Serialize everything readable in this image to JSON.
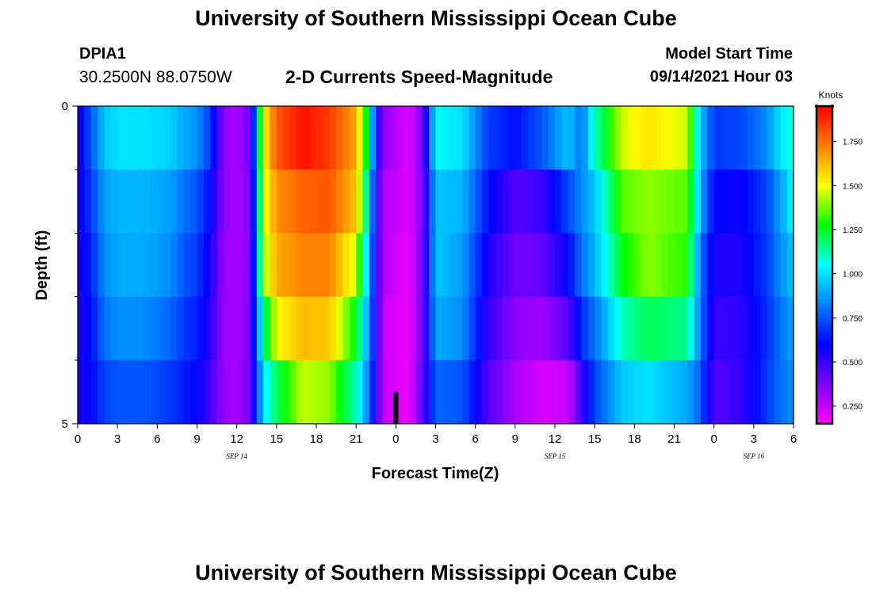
{
  "header": {
    "title": "University of Southern Mississippi Ocean Cube",
    "station_id": "DPIA1",
    "station_coords": "30.2500N  88.0750W",
    "chart_title": "2-D Currents Speed-Magnitude",
    "model_start_label": "Model Start Time",
    "model_start_value": "09/14/2021 Hour 03"
  },
  "footer": {
    "title": "University of Southern Mississippi Ocean Cube"
  },
  "colors": {
    "now_marker": "#000000",
    "colormap": [
      "#ff00ff",
      "#7f00ff",
      "#0000ff",
      "#0080ff",
      "#00ffff",
      "#00ff00",
      "#ffff00",
      "#ff8000",
      "#ff0000"
    ]
  },
  "chart_data": {
    "type": "heatmap",
    "title": "2-D Currents Speed-Magnitude",
    "xlabel": "Forecast Time(Z)",
    "ylabel": "Depth (ft)",
    "x_hours": [
      0,
      3,
      6,
      9,
      12,
      15,
      18,
      21,
      24,
      27,
      30,
      33,
      36,
      39,
      42,
      45,
      48,
      51,
      54
    ],
    "x_tick_labels": [
      "0",
      "3",
      "6",
      "9",
      "12",
      "15",
      "18",
      "21",
      "0",
      "3",
      "6",
      "9",
      "12",
      "15",
      "18",
      "21",
      "0",
      "3",
      "6"
    ],
    "date_labels": [
      {
        "text": "SEP 14",
        "hour": 12
      },
      {
        "text": "SEP 15",
        "hour": 36
      },
      {
        "text": "SEP 16",
        "hour": 51
      }
    ],
    "ylim": [
      0,
      5
    ],
    "y_tick_labels": [
      "0",
      "5"
    ],
    "y_minor_ticks": [
      1,
      2,
      3,
      4
    ],
    "depth_rows": [
      "0-1",
      "1-2",
      "2-3",
      "3-4",
      "4-5"
    ],
    "colorbar": {
      "unit": "Knots",
      "range": [
        0.15,
        1.95
      ],
      "tick_labels": [
        "0.250",
        "0.500",
        "0.750",
        "1.000",
        "1.250",
        "1.500",
        "1.750"
      ],
      "tick_values": [
        0.25,
        0.5,
        0.75,
        1.0,
        1.25,
        1.5,
        1.75
      ]
    },
    "now_marker_hour": 24,
    "series": [
      {
        "hour": 0,
        "values": [
          0.55,
          0.55,
          0.55,
          0.55,
          0.55
        ]
      },
      {
        "hour": 1,
        "values": [
          0.75,
          0.7,
          0.65,
          0.62,
          0.6
        ]
      },
      {
        "hour": 2,
        "values": [
          0.95,
          0.88,
          0.85,
          0.8,
          0.72
        ]
      },
      {
        "hour": 3,
        "values": [
          1.0,
          0.92,
          0.9,
          0.85,
          0.75
        ]
      },
      {
        "hour": 5,
        "values": [
          1.0,
          0.92,
          0.9,
          0.85,
          0.75
        ]
      },
      {
        "hour": 7,
        "values": [
          0.97,
          0.88,
          0.85,
          0.78,
          0.7
        ]
      },
      {
        "hour": 8,
        "values": [
          0.9,
          0.8,
          0.75,
          0.7,
          0.65
        ]
      },
      {
        "hour": 9,
        "values": [
          0.85,
          0.75,
          0.7,
          0.65,
          0.6
        ]
      },
      {
        "hour": 10,
        "values": [
          0.7,
          0.6,
          0.55,
          0.52,
          0.48
        ]
      },
      {
        "hour": 11,
        "values": [
          0.35,
          0.35,
          0.33,
          0.33,
          0.33
        ]
      },
      {
        "hour": 12,
        "values": [
          0.3,
          0.3,
          0.3,
          0.3,
          0.3
        ]
      },
      {
        "hour": 13,
        "values": [
          0.4,
          0.38,
          0.38,
          0.38,
          0.4
        ]
      },
      {
        "hour": 14,
        "values": [
          1.5,
          1.45,
          1.4,
          1.15,
          1.0
        ]
      },
      {
        "hour": 15,
        "values": [
          1.8,
          1.7,
          1.65,
          1.5,
          1.2
        ]
      },
      {
        "hour": 17,
        "values": [
          1.92,
          1.78,
          1.72,
          1.62,
          1.45
        ]
      },
      {
        "hour": 19,
        "values": [
          1.85,
          1.8,
          1.72,
          1.6,
          1.4
        ]
      },
      {
        "hour": 21,
        "values": [
          1.65,
          1.6,
          1.45,
          1.25,
          1.1
        ]
      },
      {
        "hour": 22,
        "values": [
          1.15,
          1.0,
          0.9,
          0.85,
          0.8
        ]
      },
      {
        "hour": 22.5,
        "values": [
          0.6,
          0.55,
          0.55,
          0.55,
          0.52
        ]
      },
      {
        "hour": 23,
        "values": [
          0.35,
          0.3,
          0.28,
          0.25,
          0.25
        ]
      },
      {
        "hour": 25,
        "values": [
          0.2,
          0.2,
          0.18,
          0.18,
          0.18
        ]
      },
      {
        "hour": 26,
        "values": [
          0.4,
          0.38,
          0.4,
          0.4,
          0.45
        ]
      },
      {
        "hour": 27,
        "values": [
          1.05,
          0.95,
          0.95,
          0.9,
          0.78
        ]
      },
      {
        "hour": 29,
        "values": [
          1.0,
          0.92,
          0.88,
          0.85,
          0.75
        ]
      },
      {
        "hour": 31,
        "values": [
          0.7,
          0.62,
          0.55,
          0.5,
          0.45
        ]
      },
      {
        "hour": 33,
        "values": [
          0.62,
          0.45,
          0.4,
          0.35,
          0.3
        ]
      },
      {
        "hour": 35,
        "values": [
          0.75,
          0.5,
          0.42,
          0.32,
          0.22
        ]
      },
      {
        "hour": 37,
        "values": [
          0.95,
          0.72,
          0.6,
          0.45,
          0.25
        ]
      },
      {
        "hour": 38,
        "values": [
          0.8,
          0.85,
          0.8,
          0.68,
          0.5
        ]
      },
      {
        "hour": 39,
        "values": [
          1.1,
          0.95,
          0.92,
          0.8,
          0.72
        ]
      },
      {
        "hour": 41,
        "values": [
          1.45,
          1.35,
          1.25,
          1.1,
          0.95
        ]
      },
      {
        "hour": 43,
        "values": [
          1.55,
          1.4,
          1.4,
          1.2,
          1.0
        ]
      },
      {
        "hour": 46,
        "values": [
          1.45,
          1.35,
          1.3,
          1.15,
          0.9
        ]
      },
      {
        "hour": 47,
        "values": [
          0.95,
          0.9,
          0.8,
          0.8,
          0.75
        ]
      },
      {
        "hour": 48,
        "values": [
          0.7,
          0.6,
          0.55,
          0.5,
          0.45
        ]
      },
      {
        "hour": 50,
        "values": [
          0.72,
          0.58,
          0.55,
          0.52,
          0.5
        ]
      },
      {
        "hour": 52,
        "values": [
          0.85,
          0.72,
          0.7,
          0.68,
          0.7
        ]
      },
      {
        "hour": 53,
        "values": [
          1.0,
          0.88,
          0.85,
          0.8,
          0.8
        ]
      },
      {
        "hour": 54,
        "values": [
          1.1,
          1.05,
          0.95,
          0.9,
          0.85
        ]
      }
    ]
  }
}
